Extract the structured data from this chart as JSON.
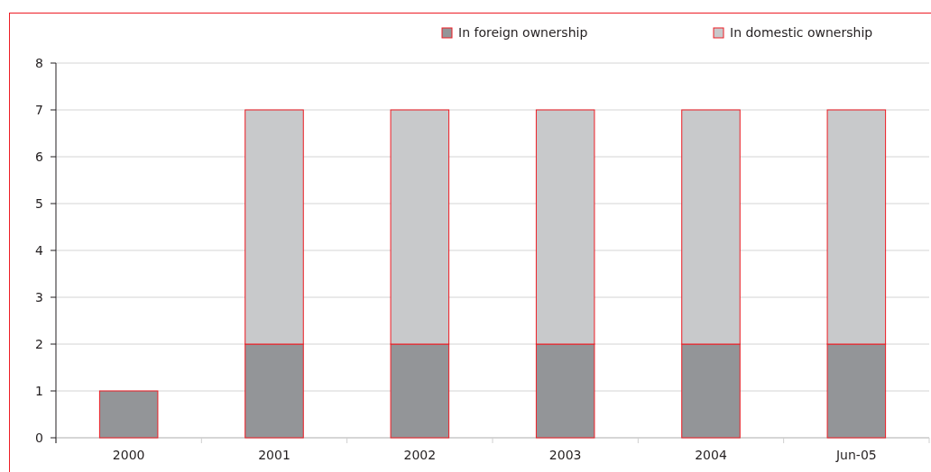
{
  "chart_data": {
    "type": "bar",
    "stacked": true,
    "categories": [
      "2000",
      "2001",
      "2002",
      "2003",
      "2004",
      "Jun-05"
    ],
    "series": [
      {
        "name": "In foreign ownership",
        "color": "#939598",
        "values": [
          1,
          2,
          2,
          2,
          2,
          2
        ]
      },
      {
        "name": "In domestic ownership",
        "color": "#c8c9cb",
        "values": [
          null,
          5,
          5,
          5,
          5,
          5
        ]
      }
    ],
    "ylim": [
      0,
      8
    ],
    "yticks": [
      0,
      1,
      2,
      3,
      4,
      5,
      6,
      7,
      8
    ],
    "grid": "y",
    "legend": "top right"
  }
}
